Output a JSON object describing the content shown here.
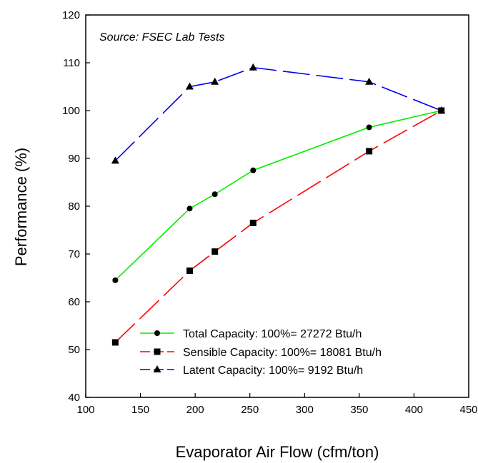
{
  "chart_data": {
    "type": "line",
    "annotation": "Source: FSEC Lab Tests",
    "xlabel": "Evaporator Air Flow (cfm/ton)",
    "ylabel": "Performance (%)",
    "xlim": [
      100,
      450
    ],
    "ylim": [
      40,
      120
    ],
    "xticks": [
      100,
      150,
      200,
      250,
      300,
      350,
      400,
      450
    ],
    "yticks": [
      40,
      50,
      60,
      70,
      80,
      90,
      100,
      110,
      120
    ],
    "grid": false,
    "legend_position": "bottom-right",
    "series": [
      {
        "name": "Total Capacity: 100%= 27272 Btu/h",
        "color": "#00ee00",
        "marker": "circle",
        "line_style": "solid",
        "x": [
          127,
          195,
          218,
          253,
          359,
          425
        ],
        "y": [
          64.5,
          79.5,
          82.5,
          87.5,
          96.5,
          100
        ]
      },
      {
        "name": "Sensible Capacity: 100%= 18081 Btu/h",
        "color": "#ff0000",
        "marker": "square",
        "line_style": "dashed",
        "x": [
          127,
          195,
          218,
          253,
          359,
          425
        ],
        "y": [
          51.5,
          66.5,
          70.5,
          76.5,
          91.5,
          100
        ]
      },
      {
        "name": "Latent Capacity: 100%= 9192 Btu/h",
        "color": "#0000ee",
        "marker": "triangle",
        "line_style": "dashed",
        "x": [
          127,
          195,
          218,
          253,
          359,
          425
        ],
        "y": [
          89.5,
          105,
          106,
          109,
          106,
          100
        ]
      }
    ]
  }
}
